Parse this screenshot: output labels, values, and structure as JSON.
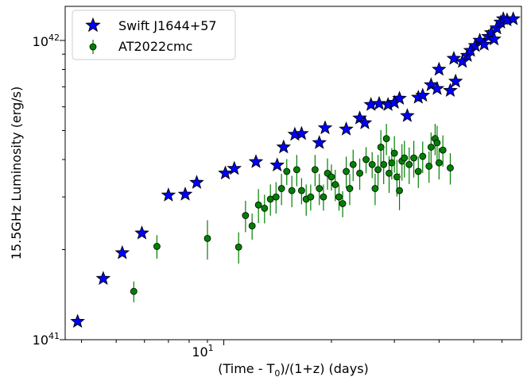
{
  "chart_data": {
    "type": "scatter",
    "title": "",
    "xlabel": "(Time - T",
    "xlabel_sub": "0",
    "xlabel_tail": ")/(1+z) (days)",
    "ylabel": "15.5GHz Luminosity (erg/s)",
    "xscale": "log",
    "yscale": "log",
    "xlim": [
      3.6,
      68
    ],
    "ylim": [
      1e+41,
      1.3e+42
    ],
    "x_ticks": [
      {
        "value": 10,
        "label": "10",
        "sup": "1"
      }
    ],
    "y_ticks": [
      {
        "value": 1e+41,
        "label": "10",
        "sup": "41"
      },
      {
        "value": 1e+42,
        "label": "10",
        "sup": "42"
      }
    ],
    "legend_position": "top-left",
    "grid": false,
    "series": [
      {
        "name": "Swift J1644+57",
        "marker": "star",
        "color": "#0000ff",
        "points": [
          [
            3.9,
            1.15e+41
          ],
          [
            4.6,
            1.6e+41
          ],
          [
            5.2,
            1.95e+41
          ],
          [
            5.9,
            2.27e+41
          ],
          [
            7.0,
            3.04e+41
          ],
          [
            7.8,
            3.06e+41
          ],
          [
            8.4,
            3.35e+41
          ],
          [
            10.1,
            3.6e+41
          ],
          [
            10.7,
            3.73e+41
          ],
          [
            12.3,
            3.93e+41
          ],
          [
            14.1,
            3.83e+41
          ],
          [
            14.7,
            4.4e+41
          ],
          [
            15.8,
            4.85e+41
          ],
          [
            16.5,
            4.88e+41
          ],
          [
            18.5,
            4.55e+41
          ],
          [
            19.2,
            5.1e+41
          ],
          [
            22.0,
            5.05e+41
          ],
          [
            24.0,
            5.5e+41
          ],
          [
            24.8,
            5.3e+41
          ],
          [
            25.8,
            6.1e+41
          ],
          [
            27.2,
            6.15e+41
          ],
          [
            28.8,
            6.1e+41
          ],
          [
            30.0,
            6.2e+41
          ],
          [
            31.0,
            6.4e+41
          ],
          [
            32.6,
            5.6e+41
          ],
          [
            35.0,
            6.45e+41
          ],
          [
            36.0,
            6.55e+41
          ],
          [
            38.0,
            7.1e+41
          ],
          [
            39.5,
            6.9e+41
          ],
          [
            40.0,
            8e+41
          ],
          [
            43.0,
            6.8e+41
          ],
          [
            44.5,
            7.3e+41
          ],
          [
            44.0,
            8.7e+41
          ],
          [
            46.5,
            8.5e+41
          ],
          [
            48.0,
            8.9e+41
          ],
          [
            49.0,
            9.25e+41
          ],
          [
            50.5,
            9.6e+41
          ],
          [
            52.0,
            1e+42
          ],
          [
            53.5,
            9.7e+41
          ],
          [
            55.0,
            1.03e+42
          ],
          [
            56.0,
            1.06e+42
          ],
          [
            58.0,
            1.1e+42
          ],
          [
            59.5,
            1.15e+42
          ],
          [
            60.5,
            1.18e+42
          ],
          [
            62.0,
            1.17e+42
          ],
          [
            64.5,
            1.18e+42
          ],
          [
            57.0,
            1.01e+42
          ]
        ]
      },
      {
        "name": "AT2022cmc",
        "marker": "circle",
        "color": "#008000",
        "points": [
          [
            5.6,
            1.45e+41,
            0.08
          ],
          [
            6.5,
            2.05e+41,
            0.09
          ],
          [
            9.0,
            2.18e+41,
            0.15
          ],
          [
            11.0,
            2.04e+41,
            0.12
          ],
          [
            11.5,
            2.6e+41,
            0.12
          ],
          [
            12.0,
            2.4e+41,
            0.1
          ],
          [
            12.5,
            2.82e+41,
            0.13
          ],
          [
            13.0,
            2.75e+41,
            0.11
          ],
          [
            13.5,
            2.95e+41,
            0.12
          ],
          [
            14.0,
            3e+41,
            0.12
          ],
          [
            14.5,
            3.2e+41,
            0.12
          ],
          [
            15.0,
            3.65e+41,
            0.1
          ],
          [
            15.5,
            3.15e+41,
            0.12
          ],
          [
            16.0,
            3.7e+41,
            0.12
          ],
          [
            16.5,
            3.15e+41,
            0.1
          ],
          [
            17.0,
            2.95e+41,
            0.12
          ],
          [
            17.5,
            3e+41,
            0.1
          ],
          [
            18.0,
            3.7e+41,
            0.12
          ],
          [
            18.5,
            3.2e+41,
            0.12
          ],
          [
            19.0,
            3e+41,
            0.1
          ],
          [
            19.5,
            3.6e+41,
            0.12
          ],
          [
            20.0,
            3.5e+41,
            0.1
          ],
          [
            20.5,
            3.3e+41,
            0.12
          ],
          [
            21.0,
            3e+41,
            0.1
          ],
          [
            21.5,
            2.85e+41,
            0.1
          ],
          [
            22.0,
            3.65e+41,
            0.12
          ],
          [
            22.5,
            3.2e+41,
            0.12
          ],
          [
            23.0,
            3.85e+41,
            0.12
          ],
          [
            24.0,
            3.6e+41,
            0.12
          ],
          [
            25.0,
            4e+41,
            0.1
          ],
          [
            26.0,
            3.85e+41,
            0.1
          ],
          [
            26.5,
            3.2e+41,
            0.12
          ],
          [
            27.0,
            3.7e+41,
            0.12
          ],
          [
            27.5,
            4.4e+41,
            0.14
          ],
          [
            28.0,
            3.85e+41,
            0.14
          ],
          [
            28.5,
            4.7e+41,
            0.12
          ],
          [
            29.0,
            3.6e+41,
            0.14
          ],
          [
            29.5,
            3.9e+41,
            0.12
          ],
          [
            30.0,
            4.2e+41,
            0.14
          ],
          [
            30.5,
            3.5e+41,
            0.14
          ],
          [
            31.0,
            3.15e+41,
            0.14
          ],
          [
            31.5,
            3.95e+41,
            0.14
          ],
          [
            32.0,
            4.05e+41,
            0.14
          ],
          [
            33.0,
            3.85e+41,
            0.14
          ],
          [
            34.0,
            4.05e+41,
            0.14
          ],
          [
            35.0,
            3.65e+41,
            0.12
          ],
          [
            36.0,
            4.1e+41,
            0.12
          ],
          [
            37.5,
            3.8e+41,
            0.12
          ],
          [
            38.0,
            4.4e+41,
            0.12
          ],
          [
            39.0,
            4.7e+41,
            0.12
          ],
          [
            39.5,
            4.55e+41,
            0.14
          ],
          [
            40.0,
            3.9e+41,
            0.12
          ],
          [
            41.0,
            4.3e+41,
            0.12
          ],
          [
            43.0,
            3.75e+41,
            0.12
          ]
        ]
      }
    ]
  }
}
